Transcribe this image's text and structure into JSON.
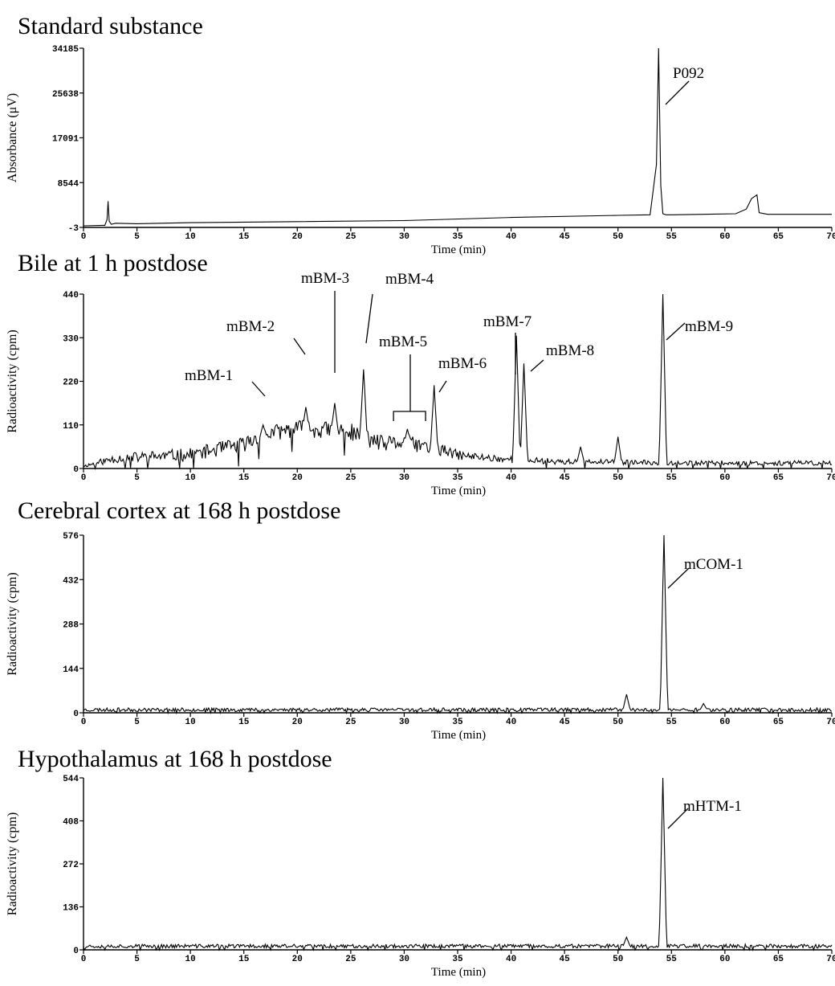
{
  "chart_data": [
    {
      "type": "line",
      "title": "Standard substance",
      "xlabel": "Time (min)",
      "ylabel": "Absorbance (μV)",
      "xlim": [
        0,
        70
      ],
      "ylim": [
        -3,
        34185
      ],
      "xticks": [
        0,
        5,
        10,
        15,
        20,
        25,
        30,
        35,
        40,
        45,
        50,
        55,
        60,
        65,
        70
      ],
      "xtick_labels": [
        "0",
        "5",
        "10",
        "15",
        "20",
        "25",
        "30",
        "35",
        "40",
        "45",
        "50",
        "55",
        "60",
        "65",
        "70"
      ],
      "yticks": [
        -3,
        8544,
        17091,
        25638,
        34185
      ],
      "ytick_labels": [
        "-3",
        "8544",
        "17091",
        "25638",
        "34185"
      ],
      "series": [
        {
          "x": [
            0,
            2.0,
            2.2,
            2.3,
            2.4,
            2.6,
            3.0,
            5,
            10,
            20,
            30,
            40,
            50,
            53.0,
            53.6,
            53.8,
            54.0,
            54.2,
            54.5,
            55,
            58,
            61,
            62.0,
            62.5,
            63.0,
            63.2,
            64,
            70
          ],
          "y": [
            300,
            400,
            1500,
            5000,
            1200,
            600,
            800,
            700,
            900,
            1100,
            1300,
            1900,
            2300,
            2400,
            12000,
            34185,
            8000,
            2600,
            2400,
            2400,
            2500,
            2600,
            3500,
            5500,
            6200,
            2800,
            2500,
            2500
          ]
        }
      ],
      "peaks": [
        {
          "label": "P092",
          "x": 53.8,
          "y": 34185
        }
      ]
    },
    {
      "type": "line",
      "title": "Bile at 1 h postdose",
      "xlabel": "Time (min)",
      "ylabel": "Radioactivity (cpm)",
      "xlim": [
        0,
        70
      ],
      "ylim": [
        0,
        440
      ],
      "xticks": [
        0,
        5,
        10,
        15,
        20,
        25,
        30,
        35,
        40,
        45,
        50,
        55,
        60,
        65,
        70
      ],
      "xtick_labels": [
        "0",
        "5",
        "10",
        "15",
        "20",
        "25",
        "30",
        "35",
        "40",
        "45",
        "50",
        "55",
        "60",
        "65",
        "70"
      ],
      "yticks": [
        0,
        110,
        220,
        330,
        440
      ],
      "ytick_labels": [
        "0",
        "110",
        "220",
        "330",
        "440"
      ],
      "noise_seed": 11,
      "baseline": [
        [
          0,
          5
        ],
        [
          3,
          22
        ],
        [
          10,
          30
        ],
        [
          15,
          55
        ],
        [
          17,
          80
        ],
        [
          20,
          95
        ],
        [
          23,
          90
        ],
        [
          25,
          85
        ],
        [
          28,
          55
        ],
        [
          30,
          60
        ],
        [
          33,
          45
        ],
        [
          35,
          30
        ],
        [
          40,
          20
        ],
        [
          45,
          15
        ],
        [
          55,
          12
        ],
        [
          70,
          12
        ]
      ],
      "noise_amp": [
        [
          0,
          6
        ],
        [
          3,
          24
        ],
        [
          15,
          40
        ],
        [
          25,
          45
        ],
        [
          33,
          35
        ],
        [
          36,
          20
        ],
        [
          45,
          14
        ],
        [
          60,
          12
        ],
        [
          70,
          12
        ]
      ],
      "spikes": [
        {
          "x": 16.8,
          "y": 110
        },
        {
          "x": 20.8,
          "y": 155
        },
        {
          "x": 23.5,
          "y": 165
        },
        {
          "x": 26.2,
          "y": 250
        },
        {
          "x": 30.3,
          "y": 100
        },
        {
          "x": 32.8,
          "y": 210
        },
        {
          "x": 40.5,
          "y": 335
        },
        {
          "x": 41.2,
          "y": 265
        },
        {
          "x": 50.0,
          "y": 80
        },
        {
          "x": 54.2,
          "y": 440
        },
        {
          "x": 46.5,
          "y": 55
        }
      ],
      "peaks": [
        {
          "label": "mBM-1",
          "x": 16.8,
          "y": 110
        },
        {
          "label": "mBM-2",
          "x": 20.8,
          "y": 155
        },
        {
          "label": "mBM-3",
          "x": 23.5,
          "y": 165
        },
        {
          "label": "mBM-4",
          "x": 26.2,
          "y": 250
        },
        {
          "label": "mBM-5",
          "x": 30.3,
          "y": 100,
          "range": [
            29,
            32
          ]
        },
        {
          "label": "mBM-6",
          "x": 32.8,
          "y": 210
        },
        {
          "label": "mBM-7",
          "x": 40.5,
          "y": 335
        },
        {
          "label": "mBM-8",
          "x": 41.2,
          "y": 265
        },
        {
          "label": "mBM-9",
          "x": 54.2,
          "y": 440
        }
      ]
    },
    {
      "type": "line",
      "title": "Cerebral cortex at 168 h postdose",
      "xlabel": "Time (min)",
      "ylabel": "Radioactivity (cpm)",
      "xlim": [
        0,
        70
      ],
      "ylim": [
        0,
        576
      ],
      "xticks": [
        0,
        5,
        10,
        15,
        20,
        25,
        30,
        35,
        40,
        45,
        50,
        55,
        60,
        65,
        70
      ],
      "xtick_labels": [
        "0",
        "5",
        "10",
        "15",
        "20",
        "25",
        "30",
        "35",
        "40",
        "45",
        "50",
        "55",
        "60",
        "65",
        "70"
      ],
      "yticks": [
        0,
        144,
        288,
        432,
        576
      ],
      "ytick_labels": [
        "0",
        "144",
        "288",
        "432",
        "576"
      ],
      "noise_seed": 23,
      "baseline": [
        [
          0,
          8
        ],
        [
          70,
          8
        ]
      ],
      "noise_amp": [
        [
          0,
          12
        ],
        [
          70,
          12
        ]
      ],
      "spikes": [
        {
          "x": 50.8,
          "y": 60
        },
        {
          "x": 54.3,
          "y": 576
        },
        {
          "x": 58.0,
          "y": 30
        }
      ],
      "peaks": [
        {
          "label": "mCOM-1",
          "x": 54.3,
          "y": 576
        }
      ]
    },
    {
      "type": "line",
      "title": "Hypothalamus at 168 h postdose",
      "xlabel": "Time (min)",
      "ylabel": "Radioactivity (cpm)",
      "xlim": [
        0,
        70
      ],
      "ylim": [
        0,
        544
      ],
      "xticks": [
        0,
        5,
        10,
        15,
        20,
        25,
        30,
        35,
        40,
        45,
        50,
        55,
        60,
        65,
        70
      ],
      "xtick_labels": [
        "0",
        "5",
        "10",
        "15",
        "20",
        "25",
        "30",
        "35",
        "40",
        "45",
        "50",
        "55",
        "60",
        "65",
        "70"
      ],
      "yticks": [
        0,
        136,
        272,
        408,
        544
      ],
      "ytick_labels": [
        "0",
        "136",
        "272",
        "408",
        "544"
      ],
      "noise_seed": 37,
      "baseline": [
        [
          0,
          10
        ],
        [
          70,
          10
        ]
      ],
      "noise_amp": [
        [
          0,
          12
        ],
        [
          70,
          12
        ]
      ],
      "spikes": [
        {
          "x": 50.8,
          "y": 40
        },
        {
          "x": 54.2,
          "y": 544
        }
      ],
      "peaks": [
        {
          "label": "mHTM-1",
          "x": 54.2,
          "y": 544
        }
      ]
    }
  ]
}
